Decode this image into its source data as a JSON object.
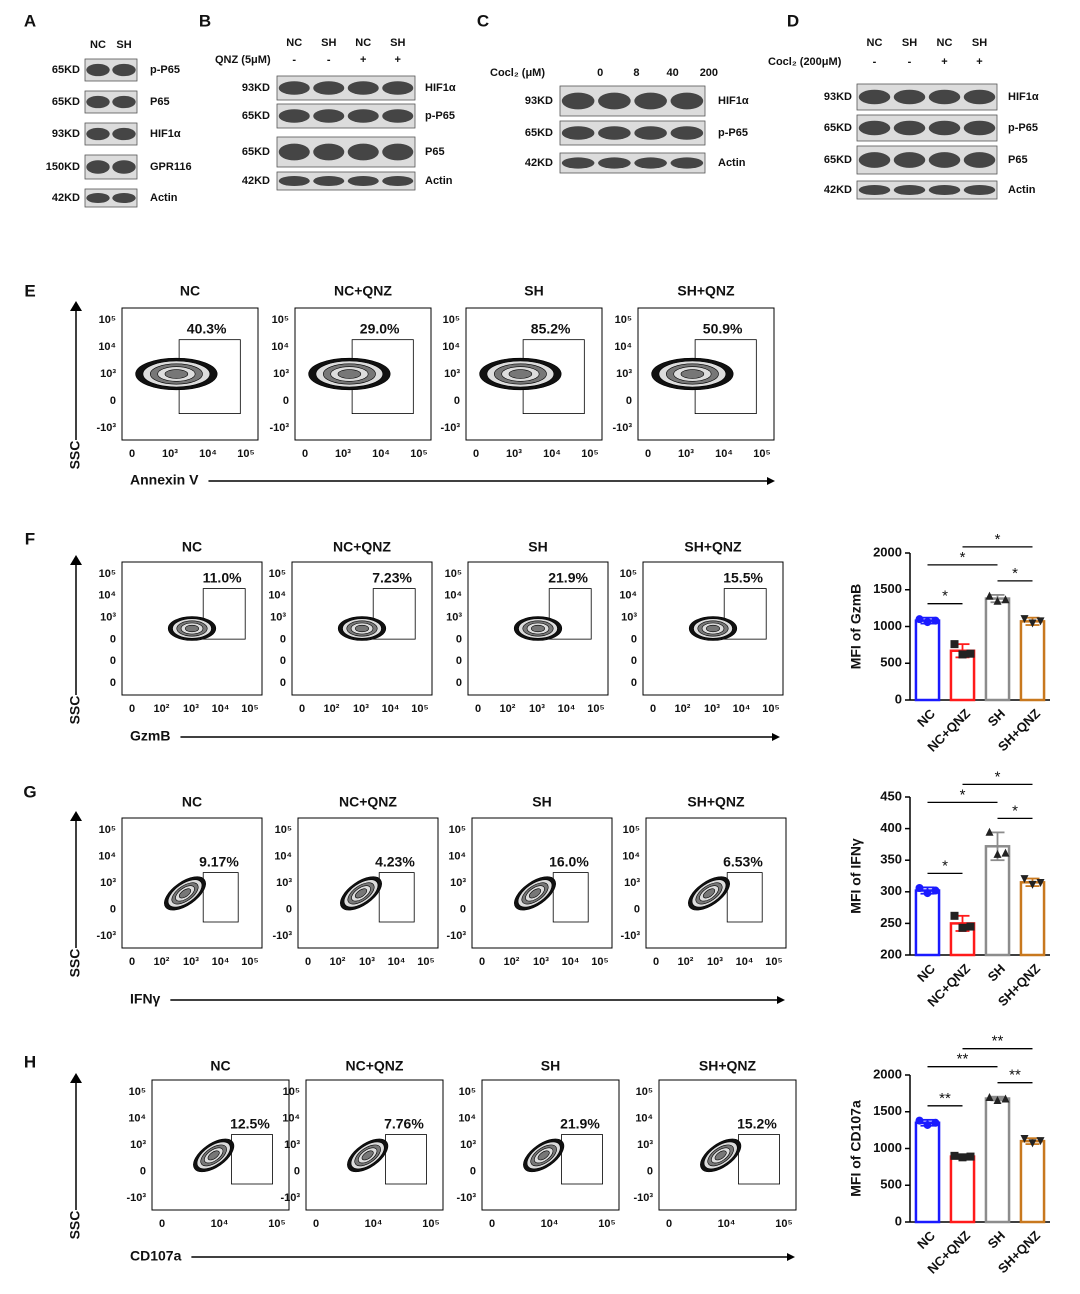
{
  "blots": [
    {
      "letter": "A",
      "columns": [
        "NC",
        "SH"
      ],
      "rows": [
        {
          "size": "65KD",
          "protein": "p-P65"
        },
        {
          "size": "65KD",
          "protein": "P65"
        },
        {
          "size": "93KD",
          "protein": "HIF1α"
        },
        {
          "size": "150KD",
          "protein": "GPR116"
        },
        {
          "size": "42KD",
          "protein": "Actin"
        }
      ]
    },
    {
      "letter": "B",
      "columns": [
        "NC",
        "SH",
        "NC",
        "SH"
      ],
      "treatment": "QNZ (5μM)",
      "signs": [
        "-",
        "-",
        "+",
        "+"
      ],
      "rows": [
        {
          "size": "93KD",
          "protein": "HIF1α"
        },
        {
          "size": "65KD",
          "protein": "p-P65"
        },
        {
          "size": "65KD",
          "protein": "P65"
        },
        {
          "size": "42KD",
          "protein": "Actin"
        }
      ]
    },
    {
      "letter": "C",
      "columns": [
        "0",
        "8",
        "40",
        "200"
      ],
      "treatment": "Cocl₂ (μM)",
      "rows": [
        {
          "size": "93KD",
          "protein": "HIF1α"
        },
        {
          "size": "65KD",
          "protein": "p-P65"
        },
        {
          "size": "42KD",
          "protein": "Actin"
        }
      ]
    },
    {
      "letter": "D",
      "columns": [
        "NC",
        "SH",
        "NC",
        "SH"
      ],
      "treatment": "Cocl₂ (200μM)",
      "signs": [
        "-",
        "-",
        "+",
        "+"
      ],
      "rows": [
        {
          "size": "93KD",
          "protein": "HIF1α"
        },
        {
          "size": "65KD",
          "protein": "p-P65"
        },
        {
          "size": "65KD",
          "protein": "P65"
        },
        {
          "size": "42KD",
          "protein": "Actin"
        }
      ]
    }
  ],
  "flow": [
    {
      "letter": "E",
      "x_label": "Annexin V",
      "y_label": "SSC",
      "groups": [
        "NC",
        "NC+QNZ",
        "SH",
        "SH+QNZ"
      ],
      "percents": [
        "40.3%",
        "29.0%",
        "85.2%",
        "50.9%"
      ],
      "yticks": [
        "10⁵",
        "10⁴",
        "10³",
        "0",
        "-10³"
      ],
      "xticks": [
        "0",
        "10³",
        "10⁴",
        "10⁵"
      ]
    },
    {
      "letter": "F",
      "x_label": "GzmB",
      "y_label": "SSC",
      "groups": [
        "NC",
        "NC+QNZ",
        "SH",
        "SH+QNZ"
      ],
      "percents": [
        "11.0%",
        "7.23%",
        "21.9%",
        "15.5%"
      ],
      "yticks": [
        "10⁵",
        "10⁴",
        "10³",
        "0",
        "0",
        "0"
      ],
      "xticks": [
        "0",
        "10²",
        "10³",
        "10⁴",
        "10⁵"
      ]
    },
    {
      "letter": "G",
      "x_label": "IFNγ",
      "y_label": "SSC",
      "groups": [
        "NC",
        "NC+QNZ",
        "SH",
        "SH+QNZ"
      ],
      "percents": [
        "9.17%",
        "4.23%",
        "16.0%",
        "6.53%"
      ],
      "yticks": [
        "10⁵",
        "10⁴",
        "10³",
        "0",
        "-10³"
      ],
      "xticks": [
        "0",
        "10²",
        "10³",
        "10⁴",
        "10⁵"
      ]
    },
    {
      "letter": "H",
      "x_label": "CD107a",
      "y_label": "SSC",
      "groups": [
        "NC",
        "NC+QNZ",
        "SH",
        "SH+QNZ"
      ],
      "percents": [
        "12.5%",
        "7.76%",
        "21.9%",
        "15.2%"
      ],
      "yticks": [
        "10⁵",
        "10⁴",
        "10³",
        "0",
        "-10³"
      ],
      "xticks": [
        "0",
        "10⁴",
        "10⁵"
      ]
    }
  ],
  "chart_data": [
    {
      "type": "bar",
      "y_label": "MFI of GzmB",
      "categories": [
        "NC",
        "NC+QNZ",
        "SH",
        "SH+QNZ"
      ],
      "values": [
        1080,
        670,
        1380,
        1070
      ],
      "errors": [
        40,
        90,
        50,
        50
      ],
      "points": [
        [
          1100,
          1060,
          1080
        ],
        [
          760,
          620,
          630
        ],
        [
          1420,
          1350,
          1370
        ],
        [
          1100,
          1040,
          1070
        ]
      ],
      "colors": [
        "#1a1aff",
        "#ff1a1a",
        "#8c8c8c",
        "#c8781e"
      ],
      "ylim": [
        0,
        2000
      ],
      "yticks": [
        0,
        500,
        1000,
        1500,
        2000
      ],
      "significance": [
        {
          "from": 0,
          "to": 1,
          "label": "*"
        },
        {
          "from": 2,
          "to": 3,
          "label": "*"
        },
        {
          "from": 0,
          "to": 2,
          "label": "*"
        },
        {
          "from": 1,
          "to": 3,
          "label": "*"
        }
      ]
    },
    {
      "type": "bar",
      "y_label": "MFI of IFNγ",
      "categories": [
        "NC",
        "NC+QNZ",
        "SH",
        "SH+QNZ"
      ],
      "values": [
        302,
        250,
        372,
        315
      ],
      "errors": [
        5,
        12,
        22,
        6
      ],
      "points": [
        [
          306,
          298,
          302
        ],
        [
          262,
          243,
          245
        ],
        [
          395,
          360,
          362
        ],
        [
          320,
          311,
          314
        ]
      ],
      "colors": [
        "#1a1aff",
        "#ff1a1a",
        "#8c8c8c",
        "#c8781e"
      ],
      "ylim": [
        200,
        450
      ],
      "yticks": [
        200,
        250,
        300,
        350,
        400,
        450
      ],
      "significance": [
        {
          "from": 0,
          "to": 1,
          "label": "*"
        },
        {
          "from": 2,
          "to": 3,
          "label": "*"
        },
        {
          "from": 0,
          "to": 2,
          "label": "*"
        },
        {
          "from": 1,
          "to": 3,
          "label": "*"
        }
      ]
    },
    {
      "type": "bar",
      "y_label": "MFI of CD107a",
      "categories": [
        "NC",
        "NC+QNZ",
        "SH",
        "SH+QNZ"
      ],
      "values": [
        1350,
        890,
        1680,
        1100
      ],
      "errors": [
        40,
        20,
        25,
        40
      ],
      "points": [
        [
          1380,
          1320,
          1350
        ],
        [
          900,
          880,
          890
        ],
        [
          1700,
          1660,
          1680
        ],
        [
          1130,
          1070,
          1100
        ]
      ],
      "colors": [
        "#1a1aff",
        "#ff1a1a",
        "#8c8c8c",
        "#c8781e"
      ],
      "ylim": [
        0,
        2000
      ],
      "yticks": [
        0,
        500,
        1000,
        1500,
        2000
      ],
      "significance": [
        {
          "from": 0,
          "to": 1,
          "label": "**"
        },
        {
          "from": 2,
          "to": 3,
          "label": "**"
        },
        {
          "from": 0,
          "to": 2,
          "label": "**"
        },
        {
          "from": 1,
          "to": 3,
          "label": "**"
        }
      ]
    }
  ]
}
